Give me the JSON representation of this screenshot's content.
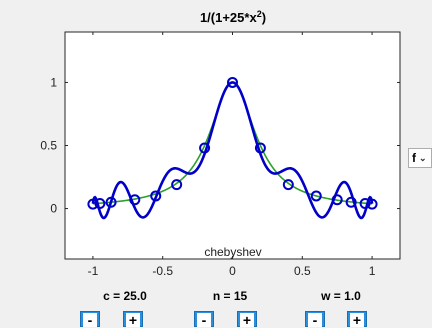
{
  "chart_data": {
    "type": "line",
    "title_base": "1/(1+25*x",
    "title_sup": "2",
    "title_end": ")",
    "annotation": "chebyshev",
    "xlim": [
      -1.2,
      1.2
    ],
    "ylim": [
      -0.4,
      1.4
    ],
    "xticks": [
      -1,
      -0.5,
      0,
      0.5,
      1
    ],
    "xtick_labels": [
      "-1",
      "-0.5",
      "0",
      "0.5",
      "1"
    ],
    "yticks": [
      0,
      0.5,
      1
    ],
    "ytick_labels": [
      "0",
      "0.5",
      "1"
    ],
    "series": [
      {
        "role": "exact function",
        "color": "#2ca02c",
        "expression": "1/(1+25*x^2)"
      },
      {
        "role": "interpolant",
        "color": "#0000c8",
        "degree": 15
      }
    ],
    "nodes": {
      "x": [
        -1.0,
        -0.967,
        -0.871,
        -0.725,
        -0.537,
        -0.321,
        -0.097,
        0.0,
        0.097,
        0.321,
        0.537,
        0.725,
        0.871,
        0.967,
        1.0
      ],
      "y": [
        0.038,
        0.041,
        0.05,
        0.071,
        0.122,
        0.28,
        0.81,
        1.0,
        0.81,
        0.28,
        0.122,
        0.071,
        0.05,
        0.041,
        0.038
      ]
    },
    "marker_x": [
      -1.0,
      -0.95,
      -0.87,
      -0.7,
      -0.55,
      -0.4,
      -0.2,
      0.0,
      0.2,
      0.4,
      0.6,
      0.75,
      0.85,
      0.95,
      1.0
    ],
    "marker_y": [
      0.035,
      0.04,
      0.05,
      0.07,
      0.1,
      0.19,
      0.48,
      1.0,
      0.48,
      0.19,
      0.1,
      0.07,
      0.05,
      0.04,
      0.035
    ]
  },
  "controls": {
    "c_label": "c = 25.0",
    "n_label": "n = 15",
    "w_label": "w = 1.0",
    "minus": "-",
    "plus": "+"
  },
  "dropdown": {
    "value": "f",
    "chevron": "⌄"
  },
  "colors": {
    "exact": "#2ca02c",
    "interp": "#0000c8",
    "button": "#2a8fdc"
  }
}
